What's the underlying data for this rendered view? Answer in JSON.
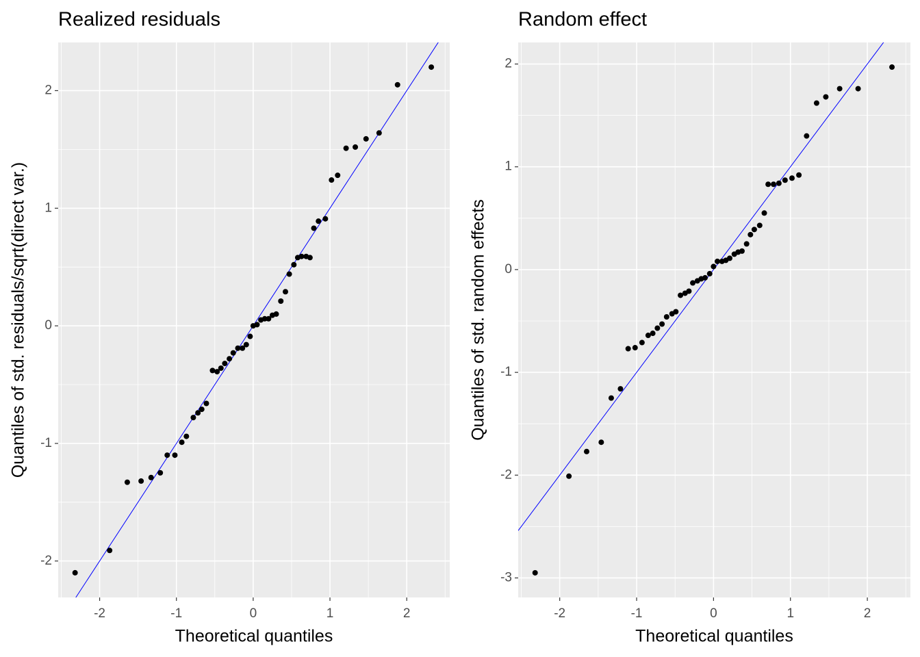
{
  "chart_data": [
    {
      "type": "scatter",
      "title": "Realized residuals",
      "x_label": "Theoretical quantiles",
      "y_label": "Quantiles of std. residuals/sqrt(direct var.)",
      "x": [
        -2.32,
        -1.87,
        -1.64,
        -1.46,
        -1.33,
        -1.21,
        -1.12,
        -1.02,
        -0.93,
        -0.87,
        -0.78,
        -0.72,
        -0.67,
        -0.61,
        -0.53,
        -0.47,
        -0.42,
        -0.37,
        -0.31,
        -0.26,
        -0.2,
        -0.14,
        -0.09,
        -0.04,
        0,
        0.05,
        0.1,
        0.15,
        0.2,
        0.25,
        0.3,
        0.36,
        0.42,
        0.47,
        0.53,
        0.58,
        0.63,
        0.69,
        0.74,
        0.79,
        0.85,
        0.94,
        1.02,
        1.1,
        1.21,
        1.33,
        1.47,
        1.64,
        1.88,
        2.32
      ],
      "values": [
        -2.1,
        -1.91,
        -1.33,
        -1.32,
        -1.29,
        -1.25,
        -1.1,
        -1.1,
        -0.99,
        -0.94,
        -0.78,
        -0.74,
        -0.71,
        -0.66,
        -0.38,
        -0.39,
        -0.36,
        -0.32,
        -0.28,
        -0.23,
        -0.19,
        -0.19,
        -0.16,
        -0.09,
        0,
        0.01,
        0.05,
        0.06,
        0.06,
        0.09,
        0.1,
        0.21,
        0.29,
        0.44,
        0.52,
        0.58,
        0.59,
        0.59,
        0.58,
        0.83,
        0.89,
        0.91,
        1.24,
        1.28,
        1.51,
        1.52,
        1.59,
        1.64,
        2.05,
        2.2
      ],
      "color": "#000000",
      "line_color": "#0000ff",
      "line_intercept": 0,
      "line_slope": 1,
      "xlim": [
        -2.54,
        2.56
      ],
      "ylim": [
        -2.31,
        2.41
      ],
      "xticks": [
        -2,
        -1,
        0,
        1,
        2
      ],
      "yticks": [
        -2,
        -1,
        0,
        1,
        2
      ],
      "grid": true
    },
    {
      "type": "scatter",
      "title": "Random effect",
      "x_label": "Theoretical quantiles",
      "y_label": "Quantiles of std. random effects",
      "x": [
        -2.32,
        -1.88,
        -1.65,
        -1.46,
        -1.33,
        -1.21,
        -1.11,
        -1.02,
        -0.93,
        -0.85,
        -0.79,
        -0.73,
        -0.67,
        -0.61,
        -0.54,
        -0.49,
        -0.43,
        -0.37,
        -0.32,
        -0.27,
        -0.21,
        -0.16,
        -0.11,
        -0.05,
        0,
        0.05,
        0.11,
        0.16,
        0.21,
        0.27,
        0.32,
        0.37,
        0.43,
        0.48,
        0.53,
        0.6,
        0.66,
        0.71,
        0.78,
        0.85,
        0.93,
        1.02,
        1.11,
        1.21,
        1.34,
        1.46,
        1.64,
        1.88,
        2.32
      ],
      "values": [
        -2.95,
        -2.01,
        -1.77,
        -1.68,
        -1.25,
        -1.16,
        -0.77,
        -0.76,
        -0.71,
        -0.64,
        -0.62,
        -0.57,
        -0.53,
        -0.46,
        -0.43,
        -0.41,
        -0.25,
        -0.23,
        -0.21,
        -0.13,
        -0.11,
        -0.09,
        -0.08,
        -0.04,
        0.03,
        0.08,
        0.08,
        0.09,
        0.11,
        0.15,
        0.17,
        0.18,
        0.25,
        0.34,
        0.39,
        0.43,
        0.55,
        0.83,
        0.83,
        0.84,
        0.87,
        0.89,
        0.92,
        1.3,
        1.62,
        1.68,
        1.76,
        1.76,
        1.97
      ],
      "color": "#000000",
      "line_color": "#0000ff",
      "line_intercept": 0,
      "line_slope": 1,
      "xlim": [
        -2.54,
        2.56
      ],
      "ylim": [
        -3.19,
        2.21
      ],
      "xticks": [
        -2,
        -1,
        0,
        1,
        2
      ],
      "yticks": [
        -3,
        -2,
        -1,
        0,
        1,
        2
      ],
      "grid": true
    }
  ]
}
